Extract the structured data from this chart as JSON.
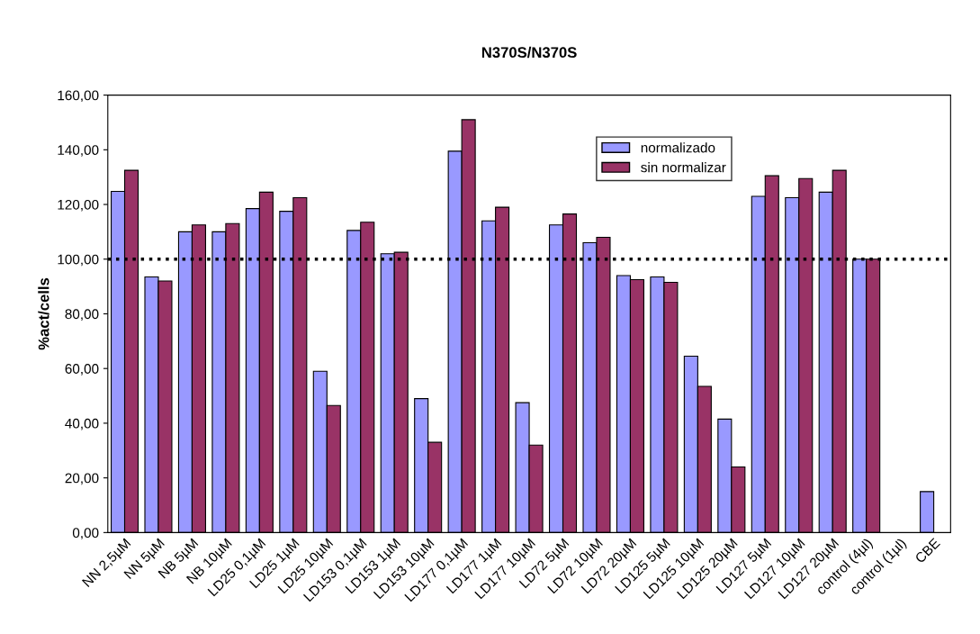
{
  "chart_data": {
    "type": "bar",
    "title": "N370S/N370S",
    "ylabel": "%act/cells",
    "categories": [
      "NN 2,5µM",
      "NN 5µM",
      "NB 5µM",
      "NB 10µM",
      "LD25 0,1µM",
      "LD25 1µM",
      "LD25 10µM",
      "LD153 0,1µM",
      "LD153 1µM",
      "LD153 10µM",
      "LD177 0,1µM",
      "LD177 1µM",
      "LD177 10µM",
      "LD72 5µM",
      "LD72 10µM",
      "LD72 20µM",
      "LD125 5µM",
      "LD125 10µM",
      "LD125 20µM",
      "LD127 5µM",
      "LD127 10µM",
      "LD127 20µM",
      "control (4µl)",
      "control (1µl)",
      "CBE"
    ],
    "series": [
      {
        "name": "normalizado",
        "color": "#9999ff",
        "values": [
          124.8,
          93.5,
          110,
          110,
          118.5,
          117.5,
          59,
          110.5,
          102,
          49,
          139.5,
          114,
          47.5,
          112.5,
          106,
          94,
          93.5,
          64.5,
          41.5,
          123,
          122.5,
          124.5,
          100,
          null,
          15
        ]
      },
      {
        "name": "sin normalizar",
        "color": "#993366",
        "values": [
          132.5,
          92,
          112.5,
          113,
          124.5,
          122.5,
          46.5,
          113.5,
          102.5,
          33,
          151,
          119,
          32,
          116.5,
          108,
          92.5,
          91.5,
          53.5,
          24,
          130.5,
          129.5,
          132.5,
          100,
          null,
          null
        ]
      }
    ],
    "ylim": [
      0,
      160
    ],
    "yticks": [
      {
        "value": 0,
        "label": "0,00"
      },
      {
        "value": 20,
        "label": "20,00"
      },
      {
        "value": 40,
        "label": "40,00"
      },
      {
        "value": 60,
        "label": "60,00"
      },
      {
        "value": 80,
        "label": "80,00"
      },
      {
        "value": 100,
        "label": "100,00"
      },
      {
        "value": 120,
        "label": "120,00"
      },
      {
        "value": 140,
        "label": "140,00"
      },
      {
        "value": 160,
        "label": "160,00"
      }
    ],
    "ref_lines": [
      {
        "axis": "y",
        "value": 100,
        "color": "#000000",
        "line_style": "dotted"
      }
    ],
    "grid": false,
    "legend": "top"
  }
}
